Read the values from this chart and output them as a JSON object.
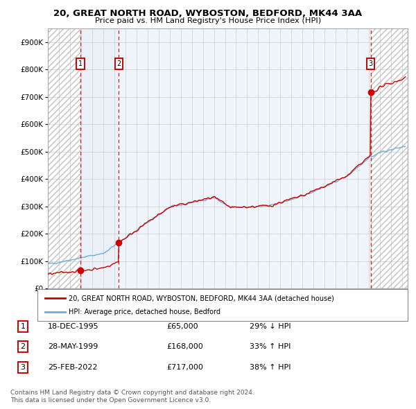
{
  "title_line1": "20, GREAT NORTH ROAD, WYBOSTON, BEDFORD, MK44 3AA",
  "title_line2": "Price paid vs. HM Land Registry's House Price Index (HPI)",
  "xlim_start": 1993.0,
  "xlim_end": 2025.5,
  "ylim_min": 0,
  "ylim_max": 950000,
  "yticks": [
    0,
    100000,
    200000,
    300000,
    400000,
    500000,
    600000,
    700000,
    800000,
    900000
  ],
  "ytick_labels": [
    "£0",
    "£100K",
    "£200K",
    "£300K",
    "£400K",
    "£500K",
    "£600K",
    "£700K",
    "£800K",
    "£900K"
  ],
  "sale_dates": [
    1995.96,
    1999.41,
    2022.15
  ],
  "sale_prices": [
    65000,
    168000,
    717000
  ],
  "sale_labels": [
    "1",
    "2",
    "3"
  ],
  "hpi_line_color": "#6baed6",
  "price_line_color": "#cc0000",
  "sale_marker_color": "#cc0000",
  "grid_color": "#cccccc",
  "shading_color": "#dce9f5",
  "legend_entries": [
    "20, GREAT NORTH ROAD, WYBOSTON, BEDFORD, MK44 3AA (detached house)",
    "HPI: Average price, detached house, Bedford"
  ],
  "table_rows": [
    [
      "1",
      "18-DEC-1995",
      "£65,000",
      "29% ↓ HPI"
    ],
    [
      "2",
      "28-MAY-1999",
      "£168,000",
      "33% ↑ HPI"
    ],
    [
      "3",
      "25-FEB-2022",
      "£717,000",
      "38% ↑ HPI"
    ]
  ],
  "footnote": "Contains HM Land Registry data © Crown copyright and database right 2024.\nThis data is licensed under the Open Government Licence v3.0.",
  "background_color": "#ffffff"
}
